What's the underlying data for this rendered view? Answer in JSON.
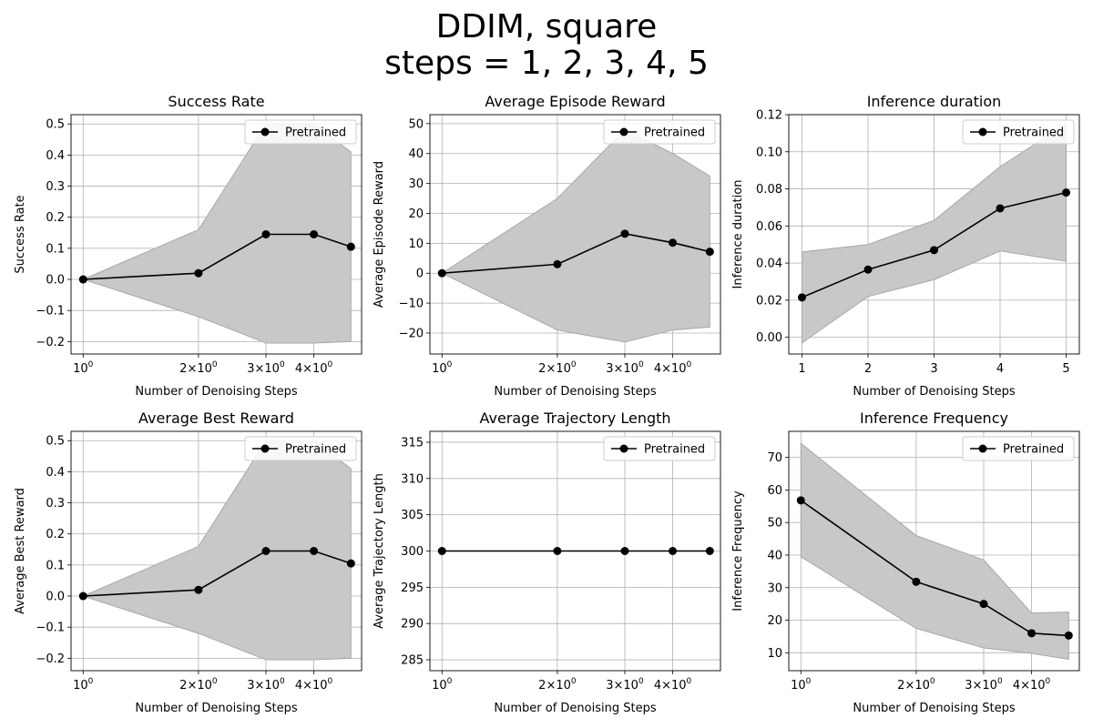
{
  "figure": {
    "title_lines": [
      "DDIM, square",
      "steps = 1, 2, 3, 4, 5"
    ]
  },
  "chart_data": [
    {
      "type": "line",
      "title": "Success Rate",
      "xlabel": "Number of Denoising Steps",
      "ylabel": "Success Rate",
      "xscale": "log",
      "xlim": [
        0.93,
        5.33
      ],
      "ylim": [
        -0.24,
        0.53
      ],
      "x": [
        1,
        2,
        3,
        4,
        5
      ],
      "xticks": [
        {
          "v": 1,
          "base": "10",
          "exp": "0"
        },
        {
          "v": 2,
          "base": "2×10",
          "exp": "0"
        },
        {
          "v": 3,
          "base": "3×10",
          "exp": "0"
        },
        {
          "v": 4,
          "base": "4×10",
          "exp": "0"
        }
      ],
      "yticks": [
        -0.2,
        -0.1,
        0.0,
        0.1,
        0.2,
        0.3,
        0.4,
        0.5
      ],
      "ytick_labels": [
        "−0.2",
        "−0.1",
        "0.0",
        "0.1",
        "0.2",
        "0.3",
        "0.4",
        "0.5"
      ],
      "series": [
        {
          "name": "Pretrained",
          "values": [
            0.0,
            0.02,
            0.145,
            0.145,
            0.105
          ],
          "lower": [
            0.0,
            -0.12,
            -0.205,
            -0.205,
            -0.2
          ],
          "upper": [
            0.0,
            0.16,
            0.5,
            0.5,
            0.41
          ]
        }
      ],
      "legend": "top-right",
      "grid": true,
      "colors": {
        "line": "#000000",
        "band": "#c8c8c8"
      }
    },
    {
      "type": "line",
      "title": "Average Episode Reward",
      "xlabel": "Number of Denoising Steps",
      "ylabel": "Average Episode Reward",
      "xscale": "log",
      "xlim": [
        0.93,
        5.33
      ],
      "ylim": [
        -27,
        53
      ],
      "x": [
        1,
        2,
        3,
        4,
        5
      ],
      "xticks": [
        {
          "v": 1,
          "base": "10",
          "exp": "0"
        },
        {
          "v": 2,
          "base": "2×10",
          "exp": "0"
        },
        {
          "v": 3,
          "base": "3×10",
          "exp": "0"
        },
        {
          "v": 4,
          "base": "4×10",
          "exp": "0"
        }
      ],
      "yticks": [
        -20,
        -10,
        0,
        10,
        20,
        30,
        40,
        50
      ],
      "ytick_labels": [
        "−20",
        "−10",
        "0",
        "10",
        "20",
        "30",
        "40",
        "50"
      ],
      "series": [
        {
          "name": "Pretrained",
          "values": [
            0,
            3,
            13.2,
            10.2,
            7.2
          ],
          "lower": [
            0,
            -19,
            -23,
            -19,
            -18
          ],
          "upper": [
            0,
            25,
            48,
            40,
            32.5
          ]
        }
      ],
      "legend": "top-right",
      "grid": true,
      "colors": {
        "line": "#000000",
        "band": "#c8c8c8"
      }
    },
    {
      "type": "line",
      "title": "Inference duration",
      "xlabel": "Number of Denoising Steps",
      "ylabel": "Inference duration",
      "xscale": "linear",
      "xlim": [
        0.8,
        5.2
      ],
      "ylim": [
        -0.009,
        0.12
      ],
      "x": [
        1,
        2,
        3,
        4,
        5
      ],
      "xticks": [
        {
          "v": 1,
          "label": "1"
        },
        {
          "v": 2,
          "label": "2"
        },
        {
          "v": 3,
          "label": "3"
        },
        {
          "v": 4,
          "label": "4"
        },
        {
          "v": 5,
          "label": "5"
        }
      ],
      "yticks": [
        0.0,
        0.02,
        0.04,
        0.06,
        0.08,
        0.1,
        0.12
      ],
      "ytick_labels": [
        "0.00",
        "0.02",
        "0.04",
        "0.06",
        "0.08",
        "0.10",
        "0.12"
      ],
      "series": [
        {
          "name": "Pretrained",
          "values": [
            0.0215,
            0.0365,
            0.047,
            0.0695,
            0.078
          ],
          "lower": [
            -0.003,
            0.022,
            0.031,
            0.0465,
            0.041
          ],
          "upper": [
            0.046,
            0.05,
            0.063,
            0.092,
            0.115
          ]
        }
      ],
      "legend": "top-right",
      "grid": true,
      "colors": {
        "line": "#000000",
        "band": "#c8c8c8"
      }
    },
    {
      "type": "line",
      "title": "Average Best Reward",
      "xlabel": "Number of Denoising Steps",
      "ylabel": "Average Best Reward",
      "xscale": "log",
      "xlim": [
        0.93,
        5.33
      ],
      "ylim": [
        -0.24,
        0.53
      ],
      "x": [
        1,
        2,
        3,
        4,
        5
      ],
      "xticks": [
        {
          "v": 1,
          "base": "10",
          "exp": "0"
        },
        {
          "v": 2,
          "base": "2×10",
          "exp": "0"
        },
        {
          "v": 3,
          "base": "3×10",
          "exp": "0"
        },
        {
          "v": 4,
          "base": "4×10",
          "exp": "0"
        }
      ],
      "yticks": [
        -0.2,
        -0.1,
        0.0,
        0.1,
        0.2,
        0.3,
        0.4,
        0.5
      ],
      "ytick_labels": [
        "−0.2",
        "−0.1",
        "0.0",
        "0.1",
        "0.2",
        "0.3",
        "0.4",
        "0.5"
      ],
      "series": [
        {
          "name": "Pretrained",
          "values": [
            0.0,
            0.02,
            0.145,
            0.145,
            0.105
          ],
          "lower": [
            0.0,
            -0.12,
            -0.205,
            -0.205,
            -0.2
          ],
          "upper": [
            0.0,
            0.16,
            0.5,
            0.5,
            0.41
          ]
        }
      ],
      "legend": "top-right",
      "grid": true,
      "colors": {
        "line": "#000000",
        "band": "#c8c8c8"
      }
    },
    {
      "type": "line",
      "title": "Average Trajectory Length",
      "xlabel": "Number of Denoising Steps",
      "ylabel": "Average Trajectory Length",
      "xscale": "log",
      "xlim": [
        0.93,
        5.33
      ],
      "ylim": [
        283.5,
        316.5
      ],
      "x": [
        1,
        2,
        3,
        4,
        5
      ],
      "xticks": [
        {
          "v": 1,
          "base": "10",
          "exp": "0"
        },
        {
          "v": 2,
          "base": "2×10",
          "exp": "0"
        },
        {
          "v": 3,
          "base": "3×10",
          "exp": "0"
        },
        {
          "v": 4,
          "base": "4×10",
          "exp": "0"
        }
      ],
      "yticks": [
        285,
        290,
        295,
        300,
        305,
        310,
        315
      ],
      "ytick_labels": [
        "285",
        "290",
        "295",
        "300",
        "305",
        "310",
        "315"
      ],
      "series": [
        {
          "name": "Pretrained",
          "values": [
            300,
            300,
            300,
            300,
            300
          ],
          "lower": [
            300,
            300,
            300,
            300,
            300
          ],
          "upper": [
            300,
            300,
            300,
            300,
            300
          ]
        }
      ],
      "legend": "top-right",
      "grid": true,
      "colors": {
        "line": "#000000",
        "band": "#c8c8c8"
      }
    },
    {
      "type": "line",
      "title": "Inference Frequency",
      "xlabel": "Number of Denoising Steps",
      "ylabel": "Inference Frequency",
      "xscale": "log",
      "xlim": [
        0.93,
        5.33
      ],
      "ylim": [
        4.5,
        78
      ],
      "x": [
        1,
        2,
        3,
        4,
        5
      ],
      "xticks": [
        {
          "v": 1,
          "base": "10",
          "exp": "0"
        },
        {
          "v": 2,
          "base": "2×10",
          "exp": "0"
        },
        {
          "v": 3,
          "base": "3×10",
          "exp": "0"
        },
        {
          "v": 4,
          "base": "4×10",
          "exp": "0"
        }
      ],
      "yticks": [
        10,
        20,
        30,
        40,
        50,
        60,
        70
      ],
      "ytick_labels": [
        "10",
        "20",
        "30",
        "40",
        "50",
        "60",
        "70"
      ],
      "series": [
        {
          "name": "Pretrained",
          "values": [
            56.8,
            31.8,
            25,
            16,
            15.3
          ],
          "lower": [
            39.5,
            17.5,
            11.5,
            9.8,
            8
          ],
          "upper": [
            74.3,
            46,
            38.5,
            22.2,
            22.5
          ]
        }
      ],
      "legend": "top-right",
      "grid": true,
      "colors": {
        "line": "#000000",
        "band": "#c8c8c8"
      }
    }
  ]
}
